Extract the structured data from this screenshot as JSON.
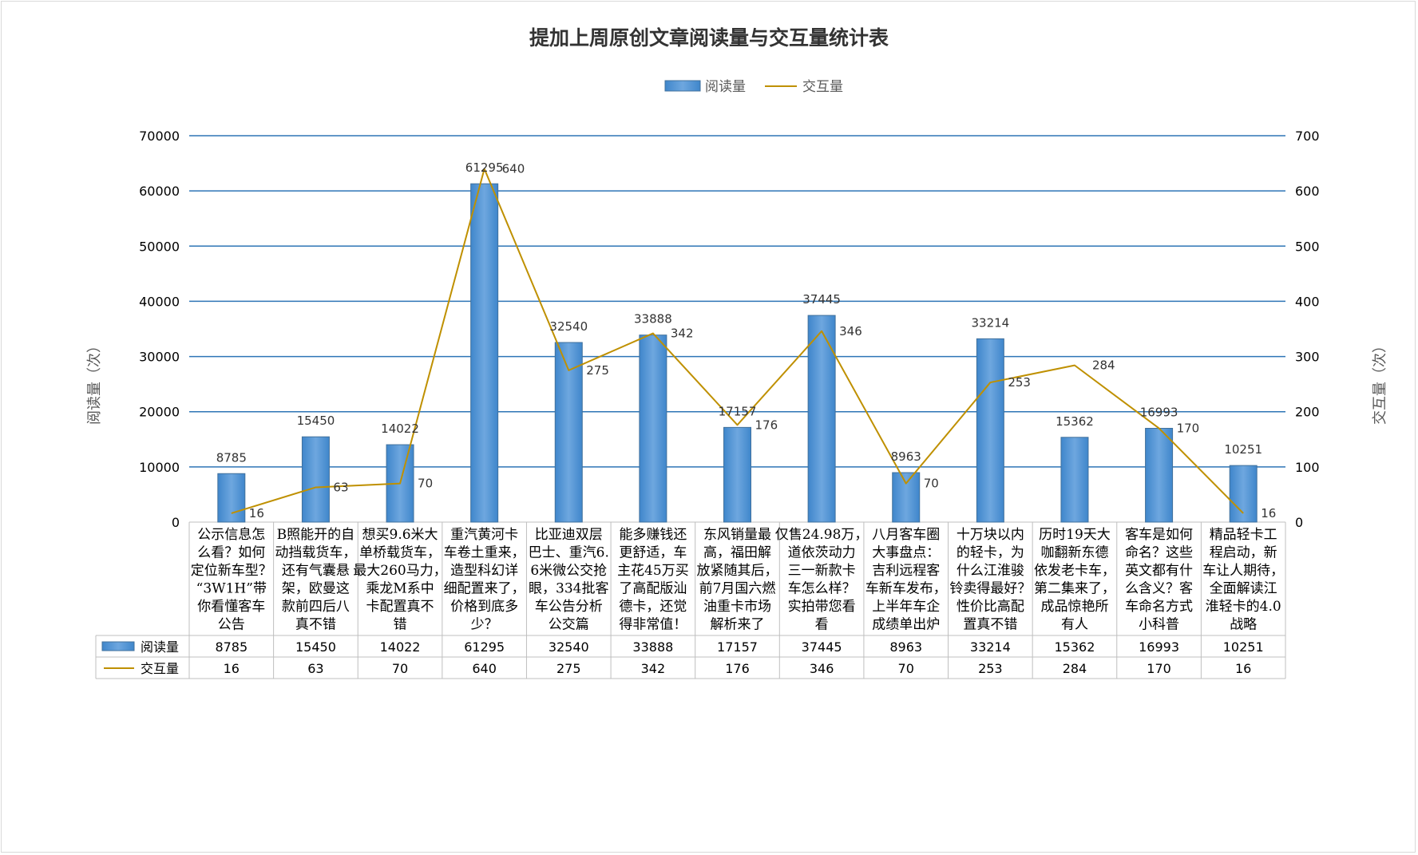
{
  "chart_data": {
    "type": "bar",
    "title": "提加上周原创文章阅读量与交互量统计表",
    "ylabel": "阅读量（次）",
    "y2label": "交互量（次）",
    "ylim": [
      0,
      70000
    ],
    "y2lim": [
      0,
      700
    ],
    "yticks": [
      "0",
      "10000",
      "20000",
      "30000",
      "40000",
      "50000",
      "60000",
      "70000"
    ],
    "y2ticks": [
      "0",
      "100",
      "200",
      "300",
      "400",
      "500",
      "600",
      "700"
    ],
    "legend_position": "top-center",
    "grid": true,
    "categories": [
      [
        "公示信息怎",
        "么看？如何",
        "定位新车型？",
        "“3W1H”带",
        "你看懂客车",
        "公告"
      ],
      [
        "B照能开的自",
        "动挡载货车，",
        "还有气囊悬",
        "架，欧曼这",
        "款前四后八",
        "真不错"
      ],
      [
        "想买9.6米大",
        "单桥载货车，",
        "最大260马力，",
        "乘龙M系中",
        "卡配置真不",
        "错"
      ],
      [
        "重汽黄河卡",
        "车卷土重来，",
        "造型科幻详",
        "细配置来了，",
        "价格到底多",
        "少？"
      ],
      [
        "比亚迪双层",
        "巴士、重汽6.",
        "6米微公交抢",
        "眼，334批客",
        "车公告分析",
        "公交篇"
      ],
      [
        "能多赚钱还",
        "更舒适，车",
        "主花45万买",
        "了高配版汕",
        "德卡，还觉",
        "得非常值！"
      ],
      [
        "东风销量最",
        "高，福田解",
        "放紧随其后，",
        "前7月国六燃",
        "油重卡市场",
        "解析来了"
      ],
      [
        "仅售24.98万，",
        "道依茨动力",
        "三一新款卡",
        "车怎么样？",
        "实拍带您看",
        "看"
      ],
      [
        "八月客车圈",
        "大事盘点：",
        "吉利远程客",
        "车新车发布，",
        "上半年车企",
        "成绩单出炉"
      ],
      [
        "十万块以内",
        "的轻卡，为",
        "什么江淮骏",
        "铃卖得最好？",
        "性价比高配",
        "置真不错"
      ],
      [
        "历时19天大",
        "咖翻新东德",
        "依发老卡车，",
        "第二集来了，",
        "成品惊艳所",
        "有人"
      ],
      [
        "客车是如何",
        "命名？这些",
        "英文都有什",
        "么含义？客",
        "车命名方式",
        "小科普"
      ],
      [
        "精品轻卡工",
        "程启动，新",
        "车让人期待，",
        "全面解读江",
        "淮轻卡的4.0",
        "战略"
      ]
    ],
    "series": [
      {
        "name": "阅读量",
        "type": "bar",
        "axis": "left",
        "color": "#5b9bd5",
        "values": [
          8785,
          15450,
          14022,
          61295,
          32540,
          33888,
          17157,
          37445,
          8963,
          33214,
          15362,
          16993,
          10251
        ]
      },
      {
        "name": "交互量",
        "type": "line",
        "axis": "right",
        "color": "#bf9000",
        "values": [
          16,
          63,
          70,
          640,
          275,
          342,
          176,
          346,
          70,
          253,
          284,
          170,
          16
        ]
      }
    ]
  }
}
